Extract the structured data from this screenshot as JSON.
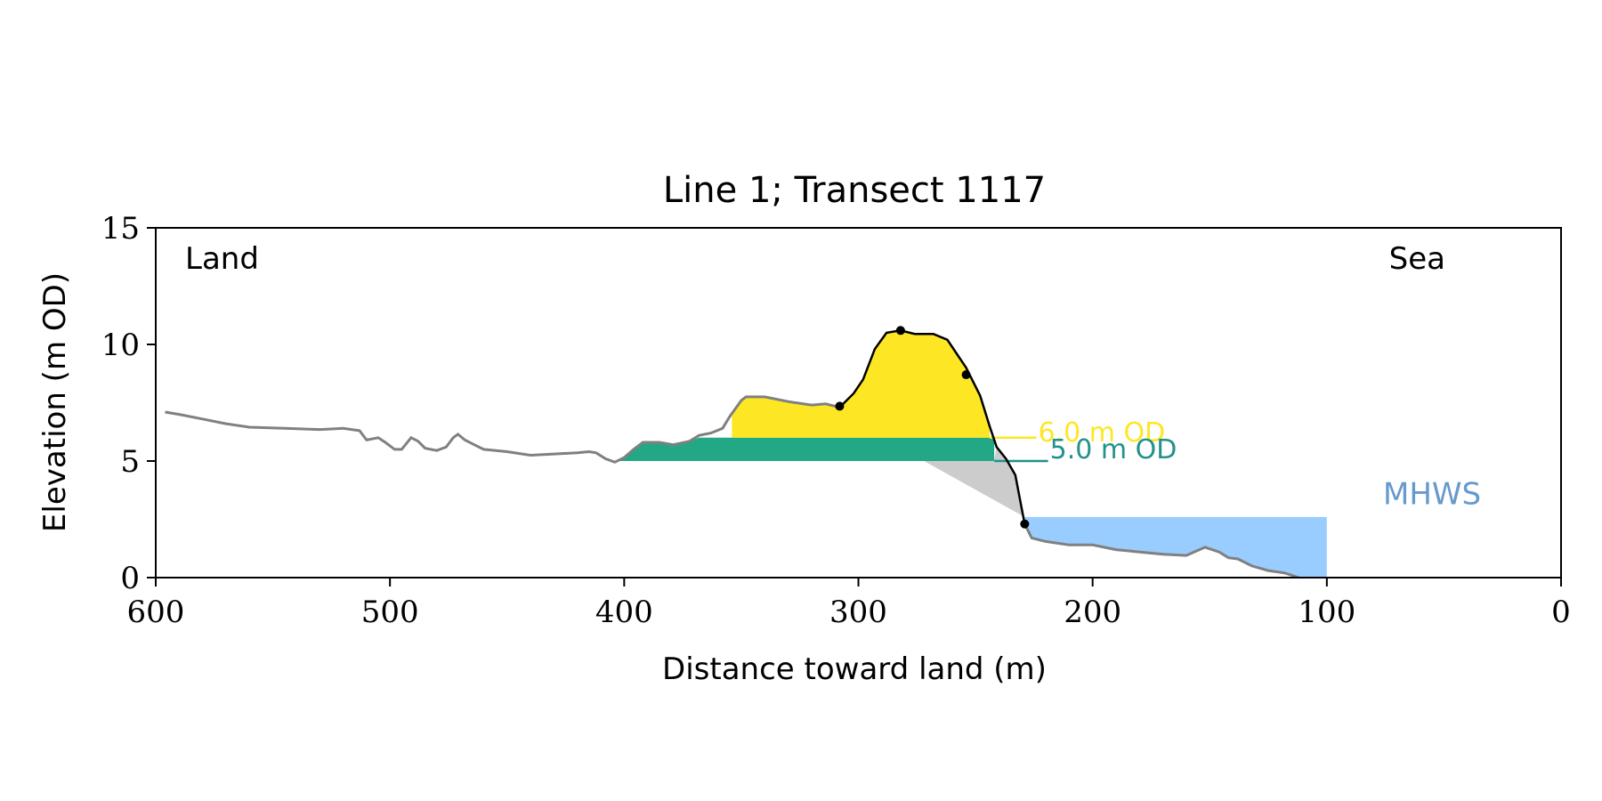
{
  "chart_data": {
    "type": "area",
    "title": "Line 1; Transect 1117",
    "xlabel": "Distance toward land (m)",
    "ylabel": "Elevation (m OD)",
    "xlim": [
      600,
      0
    ],
    "ylim": [
      0,
      15
    ],
    "x_ticks": [
      600,
      500,
      400,
      300,
      200,
      100,
      0
    ],
    "y_ticks": [
      0,
      5,
      10,
      15
    ],
    "grid": false,
    "corner_labels": {
      "left": "Land",
      "right": "Sea"
    },
    "levels": [
      {
        "label": "6.0 m OD",
        "elevation": 6.0,
        "color": "#fde725"
      },
      {
        "label": "5.0 m OD",
        "elevation": 5.0,
        "color": "#21918c"
      }
    ],
    "mhws": {
      "label": "MHWS",
      "elevation": 2.6,
      "x_extent": [
        229,
        100
      ],
      "color": "#99ccff",
      "label_color": "#6699cc"
    },
    "colors": {
      "profile": "#808080",
      "dune_profile": "#000000",
      "above_6m_fill": "#fde725",
      "between_5_6m_fill": "#22a884",
      "wedge_fill": "#cccccc"
    },
    "profile": [
      [
        596,
        7.1
      ],
      [
        590,
        7.0
      ],
      [
        580,
        6.8
      ],
      [
        570,
        6.6
      ],
      [
        560,
        6.45
      ],
      [
        545,
        6.4
      ],
      [
        530,
        6.35
      ],
      [
        520,
        6.4
      ],
      [
        513,
        6.3
      ],
      [
        510,
        5.9
      ],
      [
        505,
        6.0
      ],
      [
        502,
        5.8
      ],
      [
        498,
        5.5
      ],
      [
        495,
        5.5
      ],
      [
        491,
        6.0
      ],
      [
        488,
        5.85
      ],
      [
        485,
        5.55
      ],
      [
        480,
        5.45
      ],
      [
        476,
        5.6
      ],
      [
        473,
        6.0
      ],
      [
        471,
        6.15
      ],
      [
        468,
        5.9
      ],
      [
        464,
        5.7
      ],
      [
        460,
        5.5
      ],
      [
        450,
        5.4
      ],
      [
        440,
        5.25
      ],
      [
        430,
        5.3
      ],
      [
        420,
        5.35
      ],
      [
        415,
        5.4
      ],
      [
        412,
        5.35
      ],
      [
        408,
        5.1
      ],
      [
        404,
        4.95
      ],
      [
        400,
        5.15
      ],
      [
        396,
        5.5
      ],
      [
        392,
        5.8
      ],
      [
        385,
        5.8
      ],
      [
        379,
        5.7
      ],
      [
        372,
        5.85
      ],
      [
        368,
        6.1
      ],
      [
        363,
        6.2
      ],
      [
        358,
        6.4
      ],
      [
        355,
        6.9
      ],
      [
        350,
        7.6
      ],
      [
        348,
        7.75
      ],
      [
        340,
        7.75
      ],
      [
        330,
        7.55
      ],
      [
        320,
        7.4
      ],
      [
        314,
        7.45
      ],
      [
        308,
        7.3
      ],
      [
        302,
        7.9
      ],
      [
        298,
        8.5
      ],
      [
        293,
        9.8
      ],
      [
        288,
        10.5
      ],
      [
        282,
        10.6
      ],
      [
        276,
        10.45
      ],
      [
        268,
        10.45
      ],
      [
        262,
        10.2
      ],
      [
        258,
        9.6
      ],
      [
        254,
        9.0
      ],
      [
        252,
        8.6
      ],
      [
        248,
        7.8
      ],
      [
        244,
        6.5
      ],
      [
        241,
        5.6
      ],
      [
        237,
        5.1
      ],
      [
        233,
        4.4
      ],
      [
        229,
        2.3
      ],
      [
        226,
        1.7
      ],
      [
        220,
        1.55
      ],
      [
        210,
        1.4
      ],
      [
        200,
        1.4
      ],
      [
        190,
        1.2
      ],
      [
        180,
        1.1
      ],
      [
        170,
        1.0
      ],
      [
        160,
        0.95
      ],
      [
        152,
        1.3
      ],
      [
        146,
        1.1
      ],
      [
        142,
        0.85
      ],
      [
        138,
        0.8
      ],
      [
        132,
        0.5
      ],
      [
        125,
        0.3
      ],
      [
        118,
        0.2
      ],
      [
        112,
        0.0
      ]
    ],
    "dune_start": 308,
    "dune_end": 229,
    "markers": [
      [
        308,
        7.35
      ],
      [
        282,
        10.6
      ],
      [
        254,
        8.7
      ],
      [
        229,
        2.3
      ]
    ],
    "level_bounds": {
      "between_5_6m": [
        402,
        242
      ],
      "above_6m": [
        354,
        244
      ],
      "line_6m_end": 224,
      "line_5m_end": 219,
      "wedge_top_x": 272
    }
  }
}
